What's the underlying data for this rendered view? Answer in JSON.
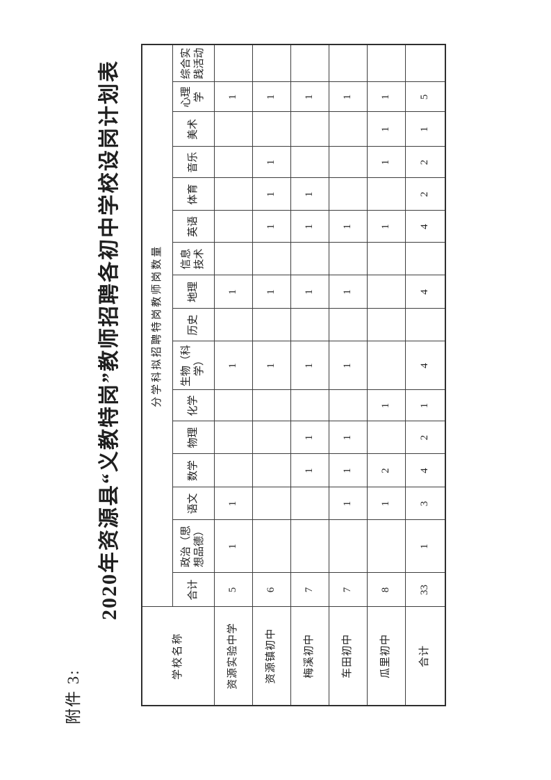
{
  "page": {
    "attachment_label": "附件 3:",
    "title": "2020年资源县“义教特岗”教师招聘各初中学校设岗计划表"
  },
  "table": {
    "corner_header": "学校名称",
    "span_header": "分学科拟招聘特岗教师岗数量",
    "columns": [
      "合计",
      "政治（思想品德）",
      "语文",
      "数学",
      "物理",
      "化学",
      "生物（科学）",
      "历史",
      "地理",
      "信息技术",
      "英语",
      "体育",
      "音乐",
      "美术",
      "心理学",
      "综合实践活动"
    ],
    "rows": [
      {
        "school": "资源实验中学",
        "values": [
          "5",
          "1",
          "1",
          "",
          "",
          "",
          "1",
          "",
          "1",
          "",
          "",
          "",
          "",
          "",
          "1",
          ""
        ]
      },
      {
        "school": "资源镇初中",
        "values": [
          "6",
          "",
          "",
          "",
          "",
          "",
          "1",
          "",
          "1",
          "",
          "1",
          "1",
          "1",
          "",
          "1",
          ""
        ]
      },
      {
        "school": "梅溪初中",
        "values": [
          "7",
          "",
          "",
          "1",
          "1",
          "",
          "1",
          "",
          "1",
          "",
          "1",
          "1",
          "",
          "",
          "1",
          ""
        ]
      },
      {
        "school": "车田初中",
        "values": [
          "7",
          "",
          "1",
          "1",
          "1",
          "",
          "1",
          "",
          "1",
          "",
          "1",
          "",
          "",
          "",
          "1",
          ""
        ]
      },
      {
        "school": "瓜里初中",
        "values": [
          "8",
          "",
          "1",
          "2",
          "",
          "1",
          "",
          "",
          "",
          "",
          "1",
          "",
          "1",
          "1",
          "1",
          ""
        ]
      },
      {
        "school": "合计",
        "values": [
          "33",
          "1",
          "3",
          "4",
          "2",
          "1",
          "4",
          "",
          "4",
          "",
          "4",
          "2",
          "2",
          "1",
          "5",
          ""
        ]
      }
    ]
  },
  "colors": {
    "paper": "#ffffff",
    "ink": "#1f1f1f",
    "grid": "#3c3c3c"
  }
}
